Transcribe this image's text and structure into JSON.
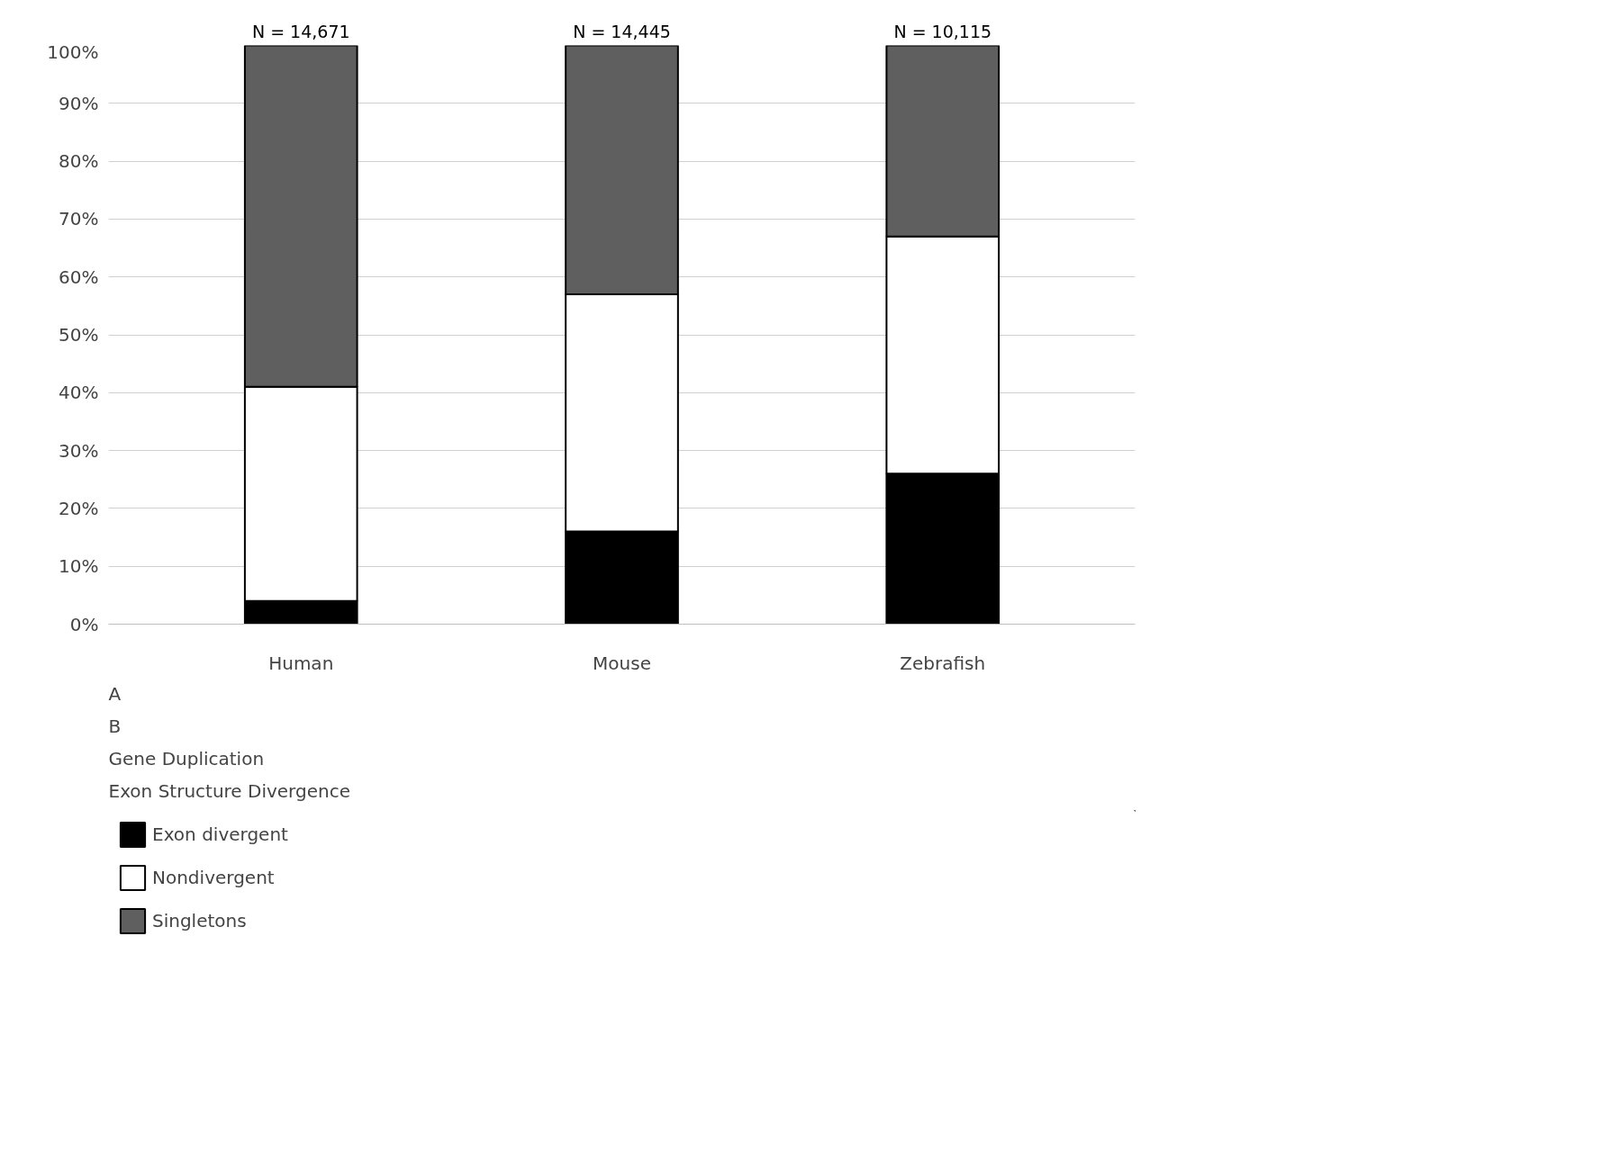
{
  "chart_data": {
    "type": "bar",
    "stacked": true,
    "categories": [
      "Human",
      "Mouse",
      "Zebrafish"
    ],
    "series": [
      {
        "name": "Exon divergent",
        "color": "#000000",
        "values": [
          4,
          16,
          26
        ]
      },
      {
        "name": "Nondivergent",
        "color": "#ffffff",
        "values": [
          37,
          41,
          41
        ]
      },
      {
        "name": "Singletons",
        "color": "#5f5f5f",
        "values": [
          59,
          43,
          33
        ]
      }
    ],
    "ylim": [
      0,
      100
    ],
    "yticks": [
      {
        "value": 0,
        "label": "0%"
      },
      {
        "value": 10,
        "label": "10%"
      },
      {
        "value": 20,
        "label": "20%"
      },
      {
        "value": 30,
        "label": "30%"
      },
      {
        "value": 40,
        "label": "40%"
      },
      {
        "value": 50,
        "label": "50%"
      },
      {
        "value": 60,
        "label": "60%"
      },
      {
        "value": 70,
        "label": "70%"
      },
      {
        "value": 80,
        "label": "80%"
      },
      {
        "value": 90,
        "label": "90%"
      },
      {
        "value": 100,
        "label": "100%"
      }
    ],
    "grid": "y",
    "legend": "bottom",
    "annotations": [
      {
        "text": "N = 14,671",
        "x": "Human",
        "y": 100
      },
      {
        "text": "N = 14,445",
        "x": "Mouse",
        "y": 100
      },
      {
        "text": "N = 10,115",
        "x": "Zebrafish",
        "y": 100
      },
      "A",
      "B",
      "Gene Duplication",
      "Exon Structure Divergence"
    ]
  }
}
